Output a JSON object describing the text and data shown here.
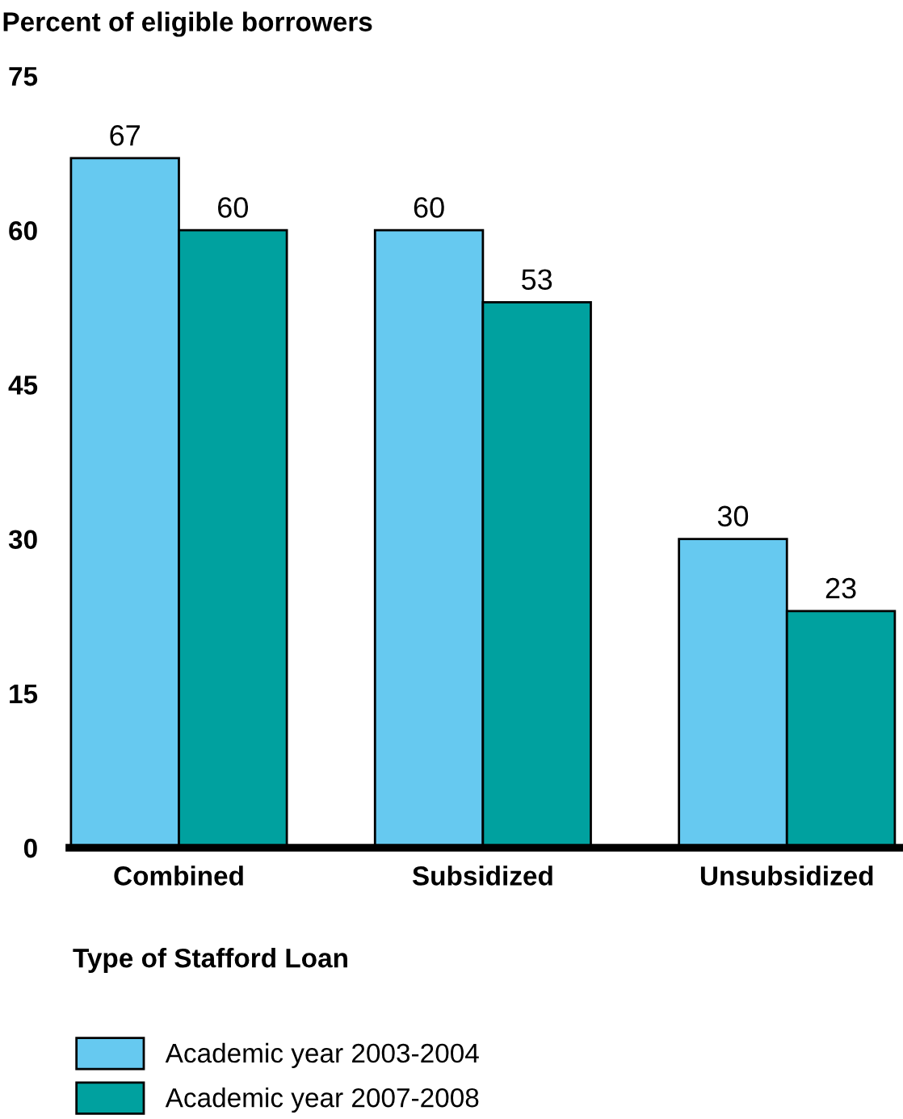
{
  "chart_data": {
    "type": "bar",
    "ylabel": "Percent of eligible borrowers",
    "xlabel": "Type of Stafford Loan",
    "categories": [
      "Combined",
      "Subsidized",
      "Unsubsidized"
    ],
    "series": [
      {
        "name": "Academic year 2003-2004",
        "color": "#66c9f0",
        "values": [
          67,
          60,
          30
        ]
      },
      {
        "name": "Academic year 2007-2008",
        "color": "#00a19f",
        "values": [
          60,
          53,
          23
        ]
      }
    ],
    "ylim": [
      0,
      75
    ],
    "yticks": [
      0,
      15,
      30,
      45,
      60,
      75
    ],
    "data_labels": true,
    "grid": false,
    "legend": "bottom"
  }
}
